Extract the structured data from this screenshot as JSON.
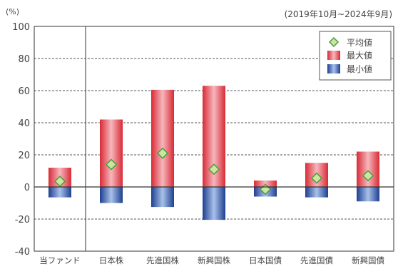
{
  "chart_data": {
    "type": "bar",
    "y_unit_label": "(%)",
    "period_label": "(2019年10月~2024年9月)",
    "categories": [
      "当ファンド",
      "日本株",
      "先進国株",
      "新興国株",
      "日本国債",
      "先進国債",
      "新興国債"
    ],
    "series": [
      {
        "name": "平均値",
        "values": [
          3.5,
          14.0,
          21.0,
          11.0,
          -1.5,
          5.5,
          7.0
        ]
      },
      {
        "name": "最大値",
        "values": [
          12.0,
          42.0,
          60.5,
          63.0,
          4.0,
          15.0,
          22.0
        ]
      },
      {
        "name": "最小値",
        "values": [
          -6.5,
          -10.0,
          -12.5,
          -20.5,
          -6.0,
          -6.5,
          -9.0
        ]
      }
    ],
    "ylim": [
      -40,
      100
    ],
    "yticks": [
      -40,
      -20,
      0,
      20,
      40,
      60,
      80,
      100
    ],
    "grid": true,
    "legend_position": "top-right",
    "colors": {
      "max_bar_edge": "#d92a35",
      "max_bar_center": "#f6b7bd",
      "min_bar_edge": "#1d3f8f",
      "min_bar_center": "#a9c1ea",
      "marker_fill": "#c9e6a2",
      "marker_stroke": "#4f9a3a",
      "axis": "#333333",
      "grid": "#555555"
    }
  }
}
